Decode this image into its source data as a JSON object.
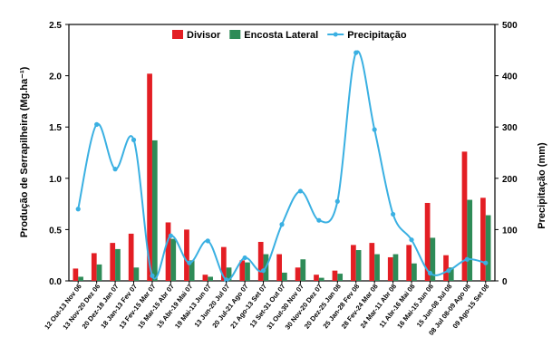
{
  "chart_data": {
    "type": "bar",
    "categories": [
      "12 Out-13 Nov 06",
      "13 Nov-20 Dez 06",
      "20 Dez-18 Jan 07",
      "18 Jan-13 Fev 07",
      "13 Fev-15 Mar 07",
      "15 Mar-15 Abr 07",
      "15 Abr-19 Mai 07",
      "19 Mai-13 Jun 07",
      "13 Jun-20 Jul 07",
      "20 Jul-21 Ago 07",
      "21 Ago-13 Set 07",
      "13 Set-31 Out 07",
      "31 Out-30 Nov 07",
      "30 Nov-20 Dez 07",
      "20 Dez-25 Jan 08",
      "25 Jan-28 Fev 08",
      "28 Fev-24 Mar 08",
      "24 Mar-11 Abr 08",
      "11 Abr-16 Mai 08",
      "16 Mai-15 Jun 08",
      "15 Jun-08 Jul 08",
      "08 Jul 08-09 Ago 08",
      "09 Ago-15 Set 08"
    ],
    "series": [
      {
        "name": "Divisor",
        "type": "bar",
        "axis": "left",
        "color": "#e31e24",
        "values": [
          0.12,
          0.27,
          0.37,
          0.46,
          2.02,
          0.57,
          0.5,
          0.06,
          0.33,
          0.2,
          0.38,
          0.26,
          0.13,
          0.06,
          0.1,
          0.35,
          0.37,
          0.23,
          0.35,
          0.76,
          0.25,
          1.26,
          0.81
        ]
      },
      {
        "name": "Encosta Lateral",
        "type": "bar",
        "axis": "left",
        "color": "#2e8b57",
        "values": [
          0.04,
          0.16,
          0.31,
          0.13,
          1.37,
          0.41,
          0.2,
          0.04,
          0.13,
          0.18,
          0.26,
          0.08,
          0.21,
          0.03,
          0.07,
          0.3,
          0.26,
          0.26,
          0.17,
          0.42,
          0.13,
          0.79,
          0.64
        ]
      },
      {
        "name": "Precipitação",
        "type": "line",
        "axis": "right",
        "color": "#3ab0e2",
        "values": [
          140,
          305,
          218,
          275,
          10,
          88,
          35,
          78,
          2,
          45,
          20,
          110,
          175,
          118,
          155,
          445,
          295,
          130,
          80,
          15,
          20,
          42,
          35
        ]
      }
    ],
    "title": "",
    "ylabel": "Produção de Serrapilheira (Mg.ha⁻¹)",
    "y2label": "Precipitação (mm)",
    "ylim": [
      0,
      2.5
    ],
    "y2lim": [
      0,
      500
    ],
    "yticks": [
      "0.0",
      "0.5",
      "1.0",
      "1.5",
      "2.0",
      "2.5"
    ],
    "y2ticks": [
      "0",
      "100",
      "200",
      "300",
      "400",
      "500"
    ],
    "legend_position": "top-center",
    "grid": false
  }
}
